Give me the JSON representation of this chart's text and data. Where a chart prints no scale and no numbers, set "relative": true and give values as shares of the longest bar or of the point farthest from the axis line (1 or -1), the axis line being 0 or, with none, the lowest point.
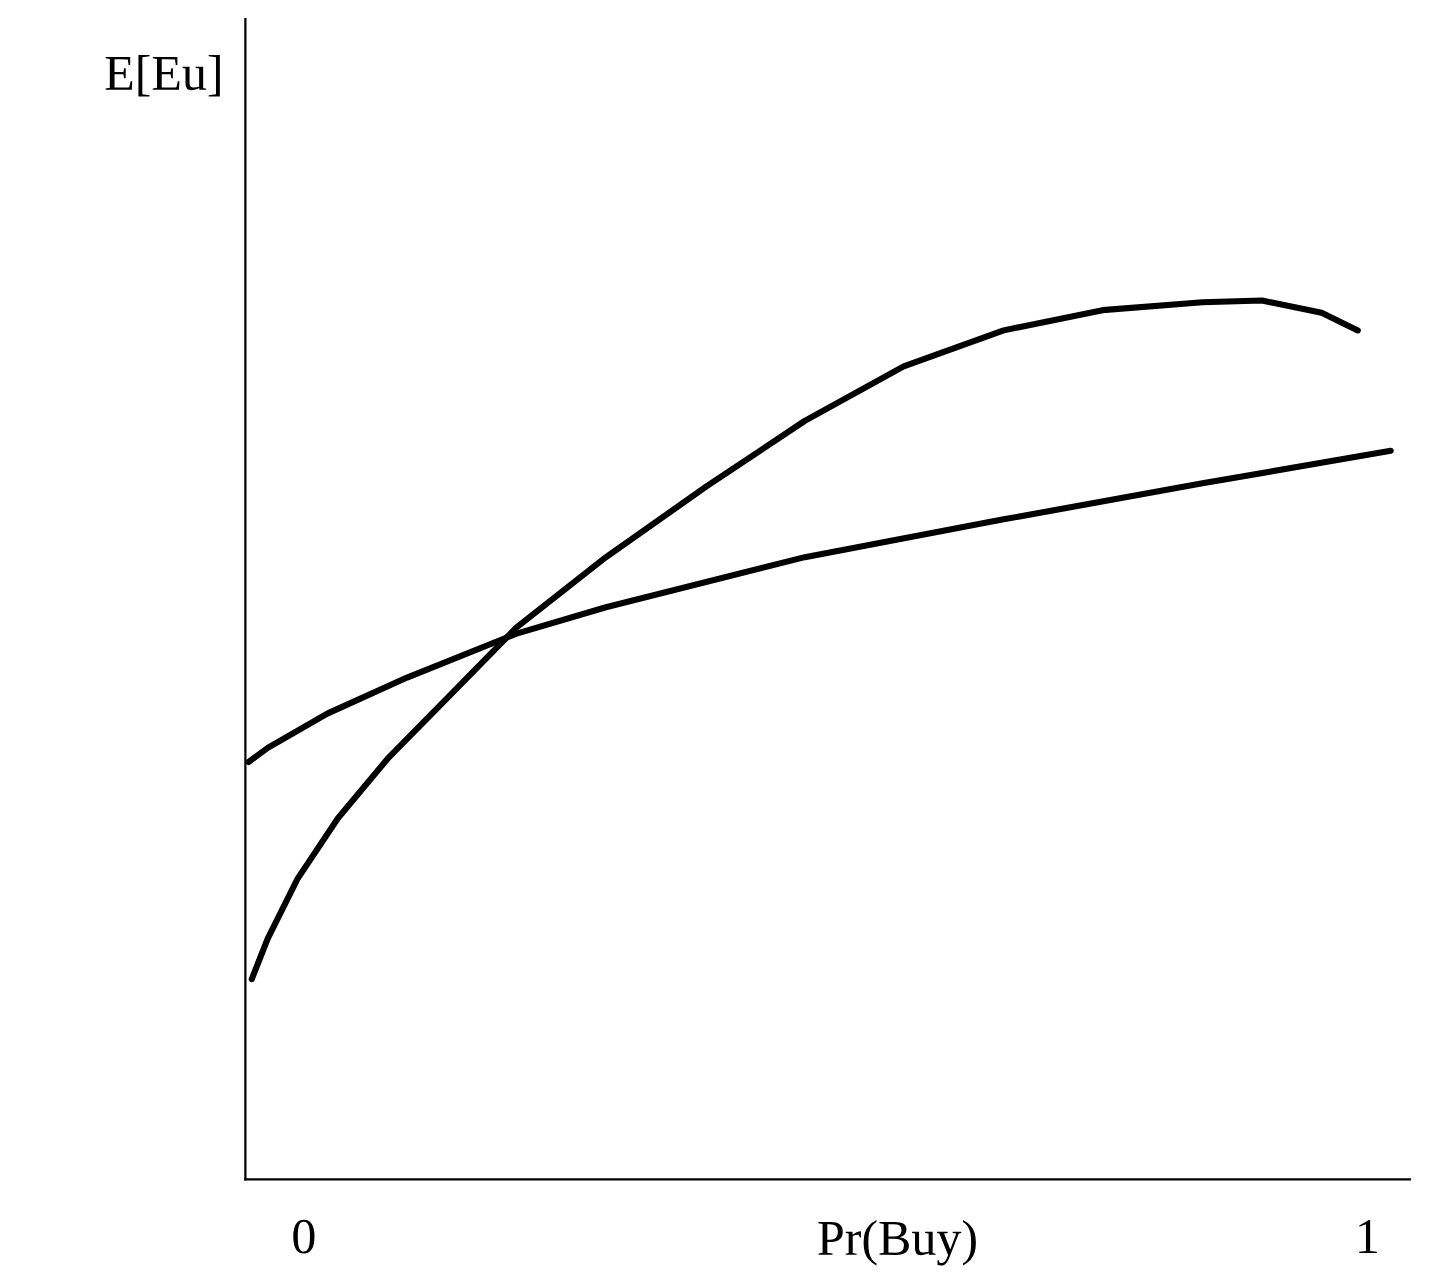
{
  "chart_data": {
    "type": "line",
    "xlabel": "Pr(Buy)",
    "ylabel": "E[Eu]",
    "relative": true,
    "xlim": [
      -0.055,
      1.04
    ],
    "xticks": [
      0,
      1
    ],
    "grid": false,
    "legend": false,
    "marker": "none",
    "line_style": "solid",
    "series": [
      {
        "color": "#000000",
        "x": [
          -0.049,
          -0.034,
          -0.006,
          0.032,
          0.079,
          0.135,
          0.2,
          0.284,
          0.378,
          0.471,
          0.564,
          0.658,
          0.751,
          0.845,
          0.901,
          0.957,
          0.991
        ],
        "values": [
          0.228,
          0.274,
          0.342,
          0.411,
          0.479,
          0.548,
          0.628,
          0.708,
          0.788,
          0.863,
          0.925,
          0.966,
          0.989,
          0.998,
          1,
          0.986,
          0.966
        ]
      },
      {
        "color": "#000000",
        "x": [
          -0.052,
          -0.034,
          0.022,
          0.097,
          0.2,
          0.284,
          0.471,
          0.658,
          0.845,
          1.022
        ],
        "values": [
          0.475,
          0.491,
          0.53,
          0.571,
          0.621,
          0.651,
          0.708,
          0.751,
          0.792,
          0.829
        ]
      }
    ]
  }
}
